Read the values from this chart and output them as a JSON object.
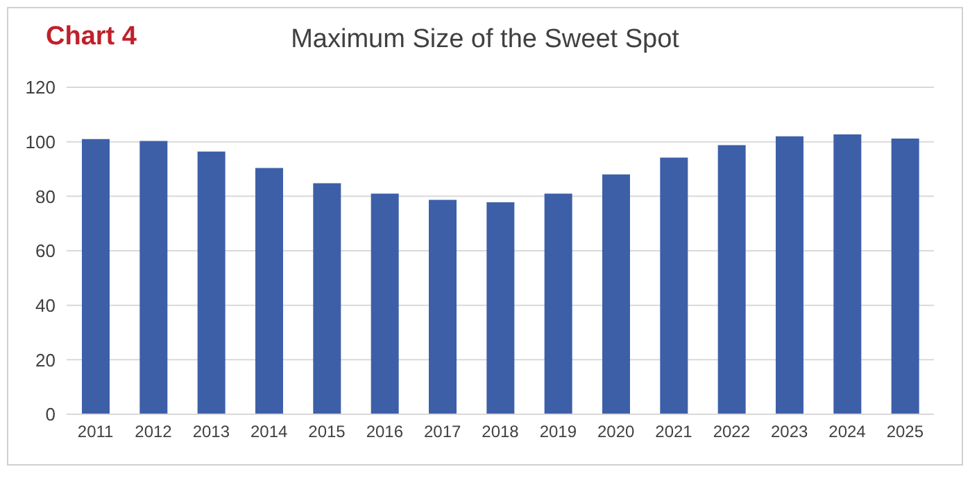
{
  "chart_data": {
    "type": "bar",
    "title": "Maximum Size of the Sweet Spot",
    "annotations": [
      "Chart 4"
    ],
    "categories": [
      "2011",
      "2012",
      "2013",
      "2014",
      "2015",
      "2016",
      "2017",
      "2018",
      "2019",
      "2020",
      "2021",
      "2022",
      "2023",
      "2024",
      "2025"
    ],
    "values": [
      101,
      100.3,
      96.4,
      90.4,
      84.8,
      81,
      78.7,
      77.8,
      81,
      88,
      94.2,
      98.8,
      102,
      102.7,
      101.2
    ],
    "color": "#3d5fa8",
    "ylim": [
      0,
      120
    ],
    "yticks": [
      0,
      20,
      40,
      60,
      80,
      100,
      120
    ],
    "grid": "y"
  }
}
